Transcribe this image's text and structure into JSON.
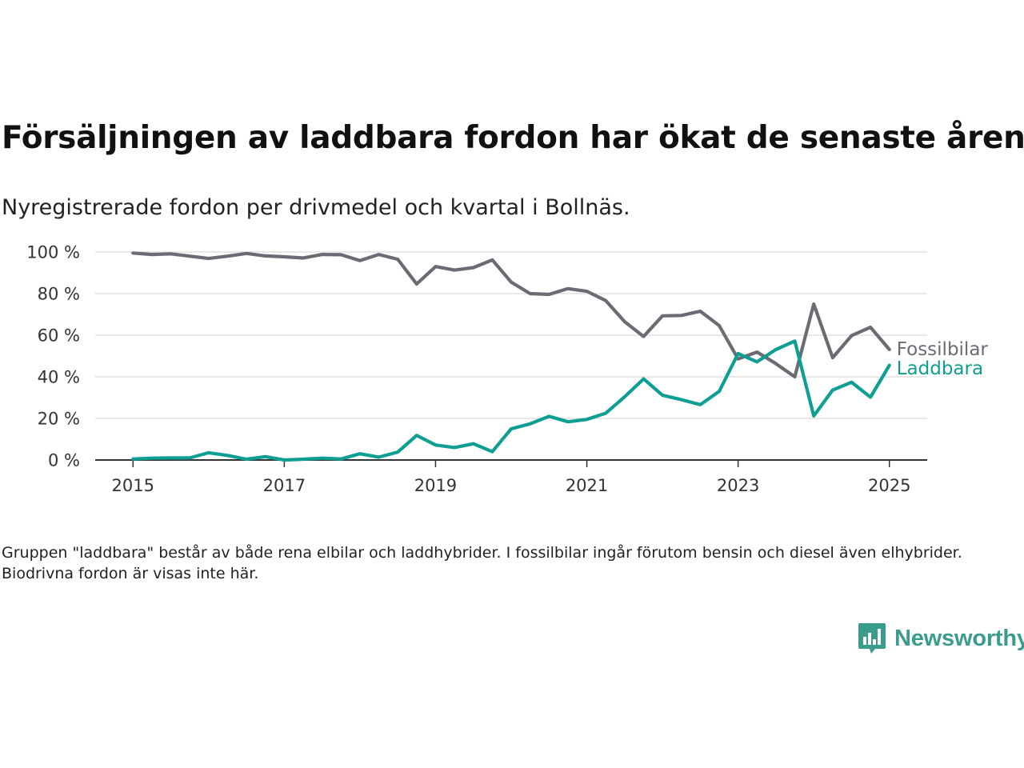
{
  "header": {
    "title": "Försäljningen av laddbara fordon har ökat de senaste åren",
    "subtitle": "Nyregistrerade fordon per drivmedel och kvartal i Bollnäs."
  },
  "footnote": "Gruppen \"laddbara\" består av både rena elbilar och laddhybrider. I fossilbilar ingår förutom bensin och diesel även elhybrider. Biodrivna fordon är visas inte här.",
  "brand": {
    "name": "Newsworthy",
    "color": "#3a9c8c",
    "icon": "newsworthy-logo-icon"
  },
  "chart_data": {
    "type": "line",
    "title": "Försäljningen av laddbara fordon har ökat de senaste åren",
    "subtitle": "Nyregistrerade fordon per drivmedel och kvartal i Bollnäs.",
    "xlabel": "",
    "ylabel": "",
    "x": [
      2015.0,
      2015.25,
      2015.5,
      2015.75,
      2016.0,
      2016.25,
      2016.5,
      2016.75,
      2017.0,
      2017.25,
      2017.5,
      2017.75,
      2018.0,
      2018.25,
      2018.5,
      2018.75,
      2019.0,
      2019.25,
      2019.5,
      2019.75,
      2020.0,
      2020.25,
      2020.5,
      2020.75,
      2021.0,
      2021.25,
      2021.5,
      2021.75,
      2022.0,
      2022.25,
      2022.5,
      2022.75,
      2023.0,
      2023.25,
      2023.5,
      2023.75,
      2024.0,
      2024.25,
      2024.5,
      2024.75,
      2025.0
    ],
    "xlim": [
      2014.5,
      2025.5
    ],
    "xticks": [
      2015,
      2017,
      2019,
      2021,
      2023,
      2025
    ],
    "xtick_labels": [
      "2015",
      "2017",
      "2019",
      "2021",
      "2023",
      "2025"
    ],
    "ylim": [
      0,
      100
    ],
    "yticks": [
      0,
      20,
      40,
      60,
      80,
      100
    ],
    "ytick_labels": [
      "0 %",
      "20 %",
      "40 %",
      "60 %",
      "80 %",
      "100 %"
    ],
    "grid": "horizontal",
    "legend": "direct labels at line ends",
    "series": [
      {
        "name": "Fossilbilar",
        "color": "#6c6b73",
        "values": [
          99.5,
          98.8,
          99.1,
          98.0,
          96.9,
          98.0,
          99.3,
          98.1,
          97.7,
          97.1,
          98.8,
          98.7,
          95.9,
          98.8,
          96.5,
          84.6,
          93.0,
          91.3,
          92.5,
          96.2,
          85.5,
          80.0,
          79.6,
          82.4,
          81.1,
          76.6,
          66.5,
          59.4,
          69.3,
          69.5,
          71.5,
          64.6,
          48.6,
          51.9,
          46.3,
          40.0,
          75.0,
          49.2,
          59.8,
          63.8,
          53.1
        ]
      },
      {
        "name": "Laddbara",
        "color": "#0f9e92",
        "values": [
          0.5,
          0.9,
          1.0,
          1.0,
          3.5,
          2.2,
          0.4,
          1.6,
          0.0,
          0.4,
          0.9,
          0.5,
          3.0,
          1.4,
          3.8,
          11.8,
          7.2,
          6.0,
          7.8,
          4.0,
          15.0,
          17.4,
          21.0,
          18.4,
          19.5,
          22.5,
          30.4,
          39.0,
          31.1,
          29.0,
          26.6,
          33.0,
          51.2,
          47.2,
          53.1,
          57.2,
          21.2,
          33.6,
          37.4,
          30.2,
          45.5
        ]
      }
    ]
  }
}
